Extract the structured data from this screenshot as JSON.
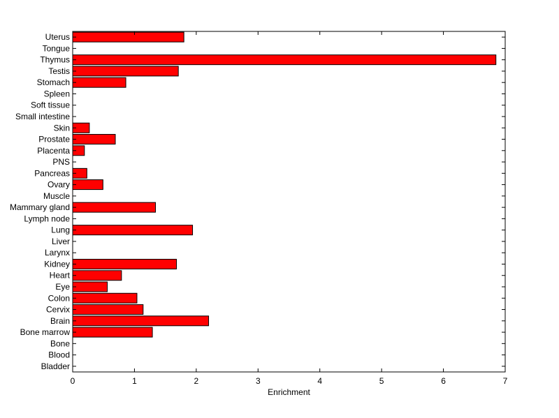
{
  "chart_data": {
    "type": "bar",
    "orientation": "horizontal",
    "categories": [
      "Uterus",
      "Tongue",
      "Thymus",
      "Testis",
      "Stomach",
      "Spleen",
      "Soft tissue",
      "Small intestine",
      "Skin",
      "Prostate",
      "Placenta",
      "PNS",
      "Pancreas",
      "Ovary",
      "Muscle",
      "Mammary gland",
      "Lymph node",
      "Lung",
      "Liver",
      "Larynx",
      "Kidney",
      "Heart",
      "Eye",
      "Colon",
      "Cervix",
      "Brain",
      "Bone marrow",
      "Bone",
      "Blood",
      "Bladder"
    ],
    "values": [
      1.8,
      0,
      6.85,
      1.71,
      0.86,
      0,
      0,
      0,
      0.27,
      0.69,
      0.19,
      0,
      0.23,
      0.49,
      0,
      1.34,
      0,
      1.94,
      0,
      0,
      1.68,
      0.79,
      0.56,
      1.04,
      1.14,
      2.2,
      1.29,
      0,
      0,
      0
    ],
    "xlabel": "Enrichment",
    "ylabel": "",
    "title": "",
    "xlim": [
      0,
      7
    ],
    "xticks": [
      "0",
      "1",
      "2",
      "3",
      "4",
      "5",
      "6",
      "7"
    ],
    "grid": false,
    "colors": {
      "bar_fill": "#ff0000",
      "bar_edge": "#000000",
      "axis": "#000000"
    }
  }
}
